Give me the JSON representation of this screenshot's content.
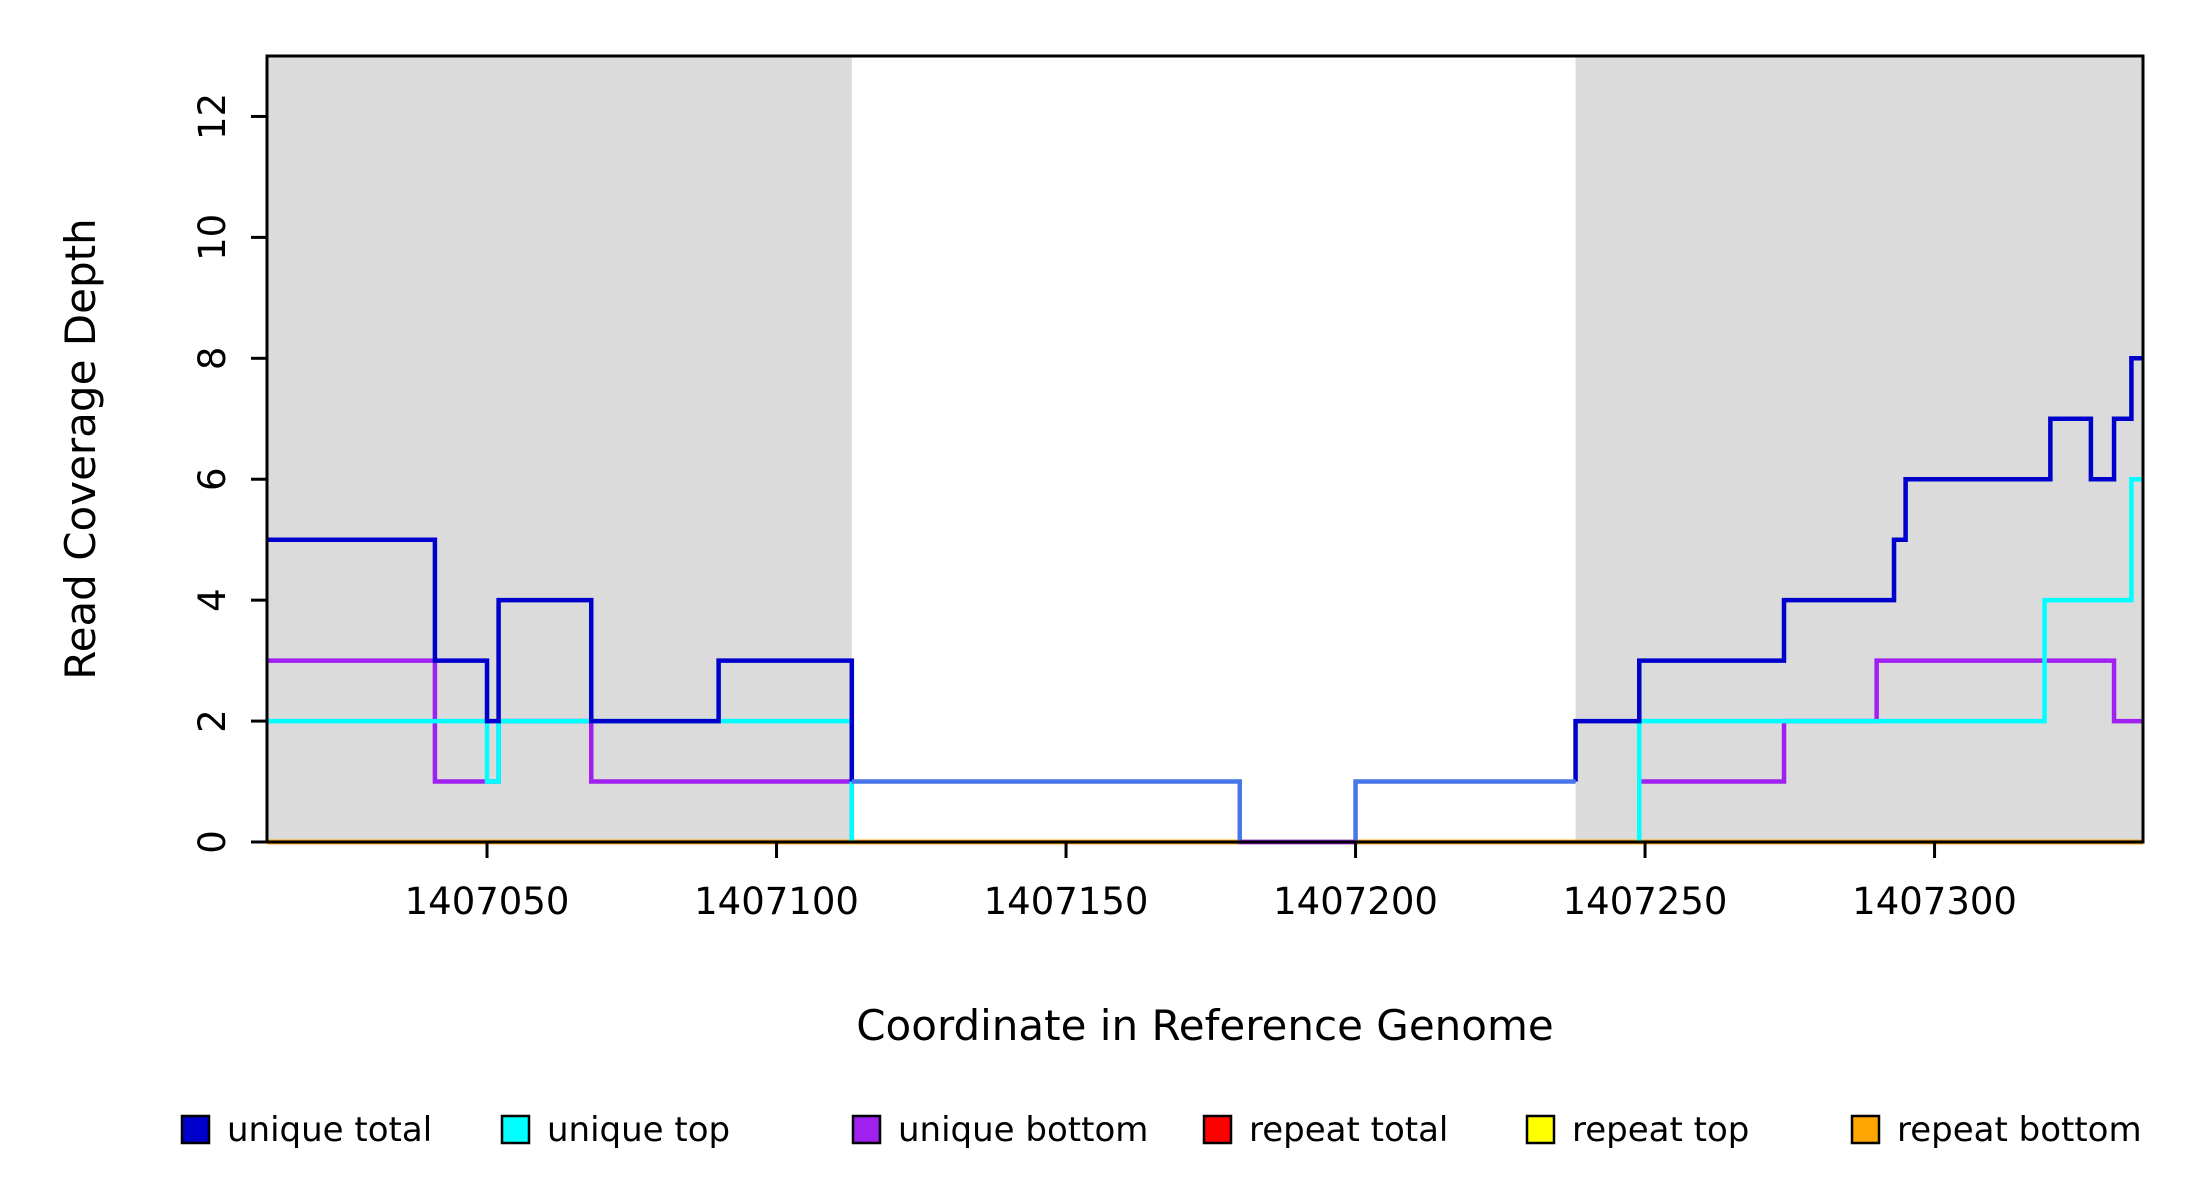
{
  "figure": {
    "title": "",
    "x_axis_title": "Coordinate in Reference Genome",
    "y_axis_title": "Read Coverage Depth"
  },
  "chart_data": {
    "type": "line",
    "subtype": "step",
    "title": "",
    "xlabel": "Coordinate in Reference Genome",
    "ylabel": "Read Coverage Depth",
    "xlim": [
      1407012,
      1407336
    ],
    "ylim": [
      0,
      13
    ],
    "grid": false,
    "legend_position": "bottom",
    "x_ticks": [
      1407050,
      1407100,
      1407150,
      1407200,
      1407250,
      1407300
    ],
    "y_ticks": [
      0,
      2,
      4,
      6,
      8,
      10,
      12
    ],
    "shaded_regions": [
      {
        "from": 1407012,
        "to": 1407113,
        "color": "#DBDBDB"
      },
      {
        "from": 1407238,
        "to": 1407336,
        "color": "#DBDBDB"
      }
    ],
    "series": [
      {
        "name": "repeat total",
        "color": "#FF0000",
        "order": 1,
        "segments": [
          {
            "points": [
              [
                1407012,
                0
              ],
              [
                1407336,
                0
              ]
            ]
          }
        ]
      },
      {
        "name": "repeat top",
        "color": "#FFFF00",
        "order": 2,
        "segments": [
          {
            "points": [
              [
                1407012,
                0
              ],
              [
                1407336,
                0
              ]
            ]
          }
        ]
      },
      {
        "name": "repeat bottom",
        "color": "#FFA500",
        "order": 3,
        "segments": [
          {
            "points": [
              [
                1407012,
                0
              ],
              [
                1407336,
                0
              ]
            ]
          }
        ]
      },
      {
        "name": "unique bottom",
        "color": "#A020F0",
        "order": 4,
        "segments": [
          {
            "points": [
              [
                1407012,
                3
              ],
              [
                1407041,
                1
              ],
              [
                1407052,
                2
              ],
              [
                1407068,
                1
              ],
              [
                1407113,
                0
              ]
            ]
          },
          {
            "points": [
              [
                1407180,
                0
              ],
              [
                1407200,
                0
              ]
            ],
            "order": 8
          },
          {
            "points": [
              [
                1407249,
                0
              ],
              [
                1407249,
                1
              ],
              [
                1407274,
                2
              ],
              [
                1407290,
                3
              ],
              [
                1407331,
                2
              ],
              [
                1407336,
                2
              ]
            ]
          }
        ]
      },
      {
        "name": "unique top",
        "color": "#00FFFF",
        "order": 5,
        "segments": [
          {
            "points": [
              [
                1407012,
                2
              ],
              [
                1407050,
                1
              ],
              [
                1407052,
                2
              ],
              [
                1407113,
                0
              ]
            ]
          },
          {
            "points": [
              [
                1407249,
                0
              ],
              [
                1407249,
                2
              ],
              [
                1407319,
                4
              ],
              [
                1407334,
                6
              ],
              [
                1407336,
                6
              ]
            ]
          }
        ]
      },
      {
        "name": "unique total",
        "color": "#0000CC",
        "order": 6,
        "segments": [
          {
            "points": [
              [
                1407012,
                5
              ],
              [
                1407041,
                3
              ],
              [
                1407050,
                2
              ],
              [
                1407052,
                4
              ],
              [
                1407068,
                2
              ],
              [
                1407090,
                3
              ],
              [
                1407113,
                1
              ]
            ]
          },
          {
            "points": [
              [
                1407113,
                1
              ],
              [
                1407180,
                0
              ],
              [
                1407200,
                1
              ],
              [
                1407238,
                1
              ]
            ],
            "color": "#4677E8",
            "order": 7
          },
          {
            "points": [
              [
                1407238,
                1
              ],
              [
                1407238,
                2
              ],
              [
                1407249,
                3
              ],
              [
                1407274,
                4
              ],
              [
                1407293,
                5
              ],
              [
                1407295,
                6
              ],
              [
                1407320,
                7
              ],
              [
                1407327,
                6
              ],
              [
                1407331,
                7
              ],
              [
                1407334,
                8
              ],
              [
                1407336,
                8
              ]
            ]
          }
        ]
      }
    ],
    "legend": [
      {
        "label": "unique total",
        "color": "#0000CC"
      },
      {
        "label": "unique top",
        "color": "#00FFFF"
      },
      {
        "label": "unique bottom",
        "color": "#A020F0"
      },
      {
        "label": "repeat total",
        "color": "#FF0000"
      },
      {
        "label": "repeat top",
        "color": "#FFFF00"
      },
      {
        "label": "repeat bottom",
        "color": "#FFA500"
      }
    ]
  }
}
